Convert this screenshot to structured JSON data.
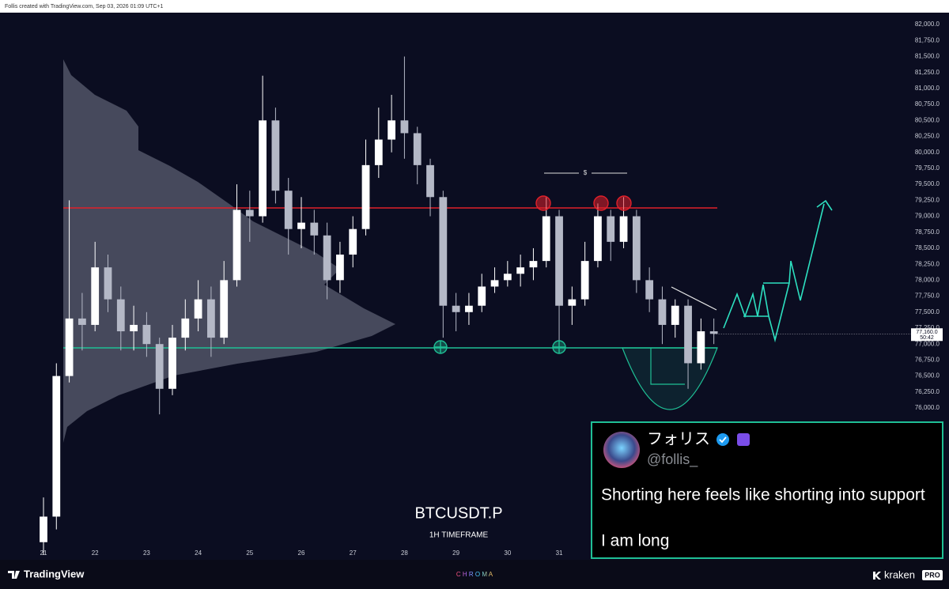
{
  "header": {
    "caption": "Follis created with TradingView.com, Sep 03, 2026 01:09 UTC+1"
  },
  "chart_data": {
    "type": "candlestick",
    "title": "BTCUSDT.P",
    "subtitle": "1H TIMEFRAME",
    "annotation": "$",
    "x": [
      21.0,
      21.25,
      21.5,
      21.75,
      22.0,
      22.25,
      22.5,
      22.75,
      23.0,
      23.25,
      23.5,
      23.75,
      24.0,
      24.25,
      24.5,
      24.75,
      25.0,
      25.25,
      25.5,
      25.75,
      26.0,
      26.25,
      26.5,
      26.75,
      27.0,
      27.25,
      27.5,
      27.75,
      28.0,
      28.25,
      28.5,
      28.75,
      29.0,
      29.25,
      29.5,
      29.75,
      30.0,
      30.25,
      30.5,
      30.75,
      31.0,
      31.25,
      31.5,
      31.75,
      32.0,
      32.25,
      32.5,
      32.75,
      33.0,
      33.25,
      33.5,
      33.75,
      34.0
    ],
    "open": [
      73900,
      74300,
      76500,
      77400,
      77300,
      78200,
      77700,
      77200,
      77300,
      77000,
      76300,
      77100,
      77400,
      77700,
      77100,
      78000,
      79100,
      79000,
      80500,
      79400,
      78800,
      78900,
      78700,
      78000,
      78400,
      78800,
      79800,
      80200,
      80500,
      80300,
      79800,
      79300,
      77600,
      77500,
      77600,
      77900,
      78000,
      78100,
      78200,
      78300,
      79000,
      77600,
      77700,
      78300,
      79000,
      78600,
      79000,
      78000,
      77700,
      77300,
      77600,
      76700,
      77200
    ],
    "high": [
      74600,
      76700,
      79250,
      77800,
      78600,
      78400,
      77900,
      77600,
      77500,
      77100,
      77300,
      77700,
      78000,
      77900,
      78300,
      79500,
      79400,
      81200,
      80700,
      79600,
      79300,
      79100,
      78900,
      78600,
      79000,
      80200,
      80700,
      80900,
      81500,
      80400,
      79900,
      79400,
      77800,
      77800,
      78100,
      78200,
      78300,
      78400,
      78500,
      79300,
      79100,
      77900,
      78600,
      79200,
      79100,
      79300,
      79100,
      78200,
      77900,
      77700,
      77700,
      77400,
      77400
    ],
    "low": [
      73700,
      74100,
      76400,
      76900,
      77200,
      77500,
      76900,
      76900,
      76800,
      75900,
      76200,
      76900,
      77200,
      76800,
      77000,
      77900,
      78600,
      78900,
      79200,
      78400,
      78500,
      78400,
      77700,
      77800,
      78200,
      78700,
      79600,
      80000,
      79900,
      79500,
      79000,
      77100,
      77200,
      77300,
      77500,
      77800,
      77900,
      77900,
      78000,
      78200,
      77000,
      77300,
      77600,
      78200,
      78300,
      78500,
      77800,
      77500,
      77000,
      77100,
      76300,
      76600,
      77000
    ],
    "close": [
      74300,
      76500,
      77400,
      77300,
      78200,
      77700,
      77200,
      77300,
      77000,
      76300,
      77100,
      77400,
      77700,
      77100,
      78000,
      79100,
      79000,
      80500,
      79400,
      78800,
      78900,
      78700,
      78000,
      78400,
      78800,
      79800,
      80200,
      80500,
      80300,
      79800,
      79300,
      77600,
      77500,
      77600,
      77900,
      78000,
      78100,
      78200,
      78300,
      79000,
      77600,
      77700,
      78300,
      79000,
      78600,
      79000,
      78000,
      77700,
      77300,
      77600,
      76700,
      77200,
      77160
    ],
    "up_color": "#ffffff",
    "down_color": "#b4b8c6",
    "xlim": [
      20.31,
      37.64
    ],
    "xticks": [
      21,
      22,
      23,
      24,
      25,
      26,
      27,
      28,
      29,
      30,
      31
    ],
    "ylim": [
      73625,
      82186
    ],
    "yticks": [
      {
        "value": 82000,
        "label": "82,000.0"
      },
      {
        "value": 81750,
        "label": "81,750.0"
      },
      {
        "value": 81500,
        "label": "81,500.0"
      },
      {
        "value": 81250,
        "label": "81,250.0"
      },
      {
        "value": 81000,
        "label": "81,000.0"
      },
      {
        "value": 80750,
        "label": "80,750.0"
      },
      {
        "value": 80500,
        "label": "80,500.0"
      },
      {
        "value": 80250,
        "label": "80,250.0"
      },
      {
        "value": 80000,
        "label": "80,000.0"
      },
      {
        "value": 79750,
        "label": "79,750.0"
      },
      {
        "value": 79500,
        "label": "79,500.0"
      },
      {
        "value": 79250,
        "label": "79,250.0"
      },
      {
        "value": 79000,
        "label": "79,000.0"
      },
      {
        "value": 78750,
        "label": "78,750.0"
      },
      {
        "value": 78500,
        "label": "78,500.0"
      },
      {
        "value": 78250,
        "label": "78,250.0"
      },
      {
        "value": 78000,
        "label": "78,000.0"
      },
      {
        "value": 77750,
        "label": "77,750.0"
      },
      {
        "value": 77500,
        "label": "77,500.0"
      },
      {
        "value": 77250,
        "label": "77,250.0"
      },
      {
        "value": 77000,
        "label": "77,000.0"
      },
      {
        "value": 76750,
        "label": "76,750.0"
      },
      {
        "value": 76500,
        "label": "76,500.0"
      },
      {
        "value": 76250,
        "label": "76,250.0"
      },
      {
        "value": 76000,
        "label": "76,000.0"
      }
    ],
    "last_price": {
      "value": 77160,
      "label": "77,160.0"
    },
    "countdown": "50:42"
  },
  "tweet": {
    "name": "フォリス",
    "handle": "@follis_",
    "lines": [
      "Shorting here feels like shorting into support",
      "I am long"
    ]
  },
  "footer": {
    "brand": "TradingView",
    "center": "C H R O M A",
    "right_brand": "kraken",
    "right_tag": "PRO"
  }
}
